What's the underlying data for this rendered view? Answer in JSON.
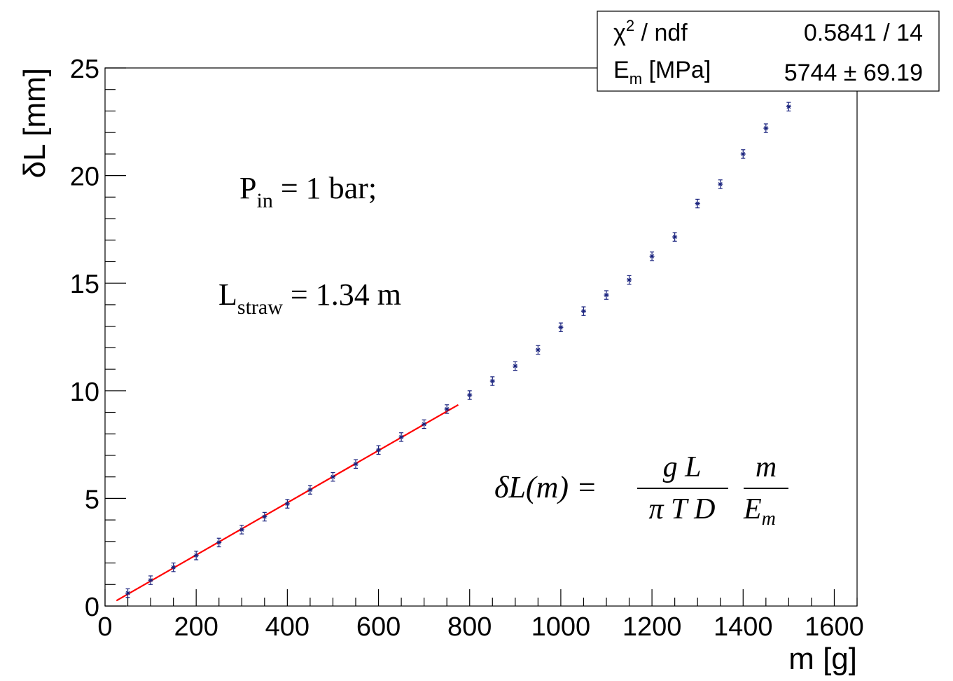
{
  "chart_data": {
    "type": "scatter",
    "xlabel": "m [g]",
    "ylabel": "δL [mm]",
    "xlim": [
      0,
      1650
    ],
    "ylim": [
      0,
      25
    ],
    "x_ticks": [
      "0",
      "200",
      "400",
      "600",
      "800",
      "1000",
      "1200",
      "1400",
      "1600"
    ],
    "y_ticks": [
      "0",
      "5",
      "10",
      "15",
      "20",
      "25"
    ],
    "grid": false,
    "series": [
      {
        "marker_color": "#1a237e",
        "points": [
          {
            "x": 50,
            "y": 0.6,
            "err": 0.2
          },
          {
            "x": 100,
            "y": 1.2,
            "err": 0.2
          },
          {
            "x": 150,
            "y": 1.8,
            "err": 0.2
          },
          {
            "x": 200,
            "y": 2.35,
            "err": 0.2
          },
          {
            "x": 250,
            "y": 2.95,
            "err": 0.2
          },
          {
            "x": 300,
            "y": 3.55,
            "err": 0.2
          },
          {
            "x": 350,
            "y": 4.15,
            "err": 0.2
          },
          {
            "x": 400,
            "y": 4.75,
            "err": 0.2
          },
          {
            "x": 450,
            "y": 5.4,
            "err": 0.2
          },
          {
            "x": 500,
            "y": 6.0,
            "err": 0.2
          },
          {
            "x": 550,
            "y": 6.6,
            "err": 0.2
          },
          {
            "x": 600,
            "y": 7.25,
            "err": 0.2
          },
          {
            "x": 650,
            "y": 7.85,
            "err": 0.2
          },
          {
            "x": 700,
            "y": 8.45,
            "err": 0.2
          },
          {
            "x": 750,
            "y": 9.15,
            "err": 0.2
          },
          {
            "x": 800,
            "y": 9.8,
            "err": 0.2
          },
          {
            "x": 850,
            "y": 10.45,
            "err": 0.2
          },
          {
            "x": 900,
            "y": 11.15,
            "err": 0.2
          },
          {
            "x": 950,
            "y": 11.9,
            "err": 0.2
          },
          {
            "x": 1000,
            "y": 12.95,
            "err": 0.2
          },
          {
            "x": 1050,
            "y": 13.7,
            "err": 0.2
          },
          {
            "x": 1100,
            "y": 14.45,
            "err": 0.2
          },
          {
            "x": 1150,
            "y": 15.15,
            "err": 0.2
          },
          {
            "x": 1200,
            "y": 16.25,
            "err": 0.2
          },
          {
            "x": 1250,
            "y": 17.15,
            "err": 0.2
          },
          {
            "x": 1300,
            "y": 18.7,
            "err": 0.2
          },
          {
            "x": 1350,
            "y": 19.6,
            "err": 0.2
          },
          {
            "x": 1400,
            "y": 21.0,
            "err": 0.2
          },
          {
            "x": 1450,
            "y": 22.2,
            "err": 0.2
          },
          {
            "x": 1500,
            "y": 23.2,
            "err": 0.2
          }
        ]
      }
    ],
    "fit": {
      "color": "#ff0000",
      "x_range": [
        25,
        775
      ],
      "y_range": [
        0.25,
        9.35
      ]
    },
    "stats_box": {
      "row1_label": "χ",
      "row1_sup": "2",
      "row1_label_rest": " / ndf",
      "row1_value": "0.5841 / 14",
      "row2_label": "E",
      "row2_sub": "m",
      "row2_label_rest": " [MPa]",
      "row2_value": "5744 ± 69.19"
    },
    "annotations": {
      "pressure_main": "P",
      "pressure_sub": "in",
      "pressure_rest": " = 1 bar;",
      "length_main": "L",
      "length_sub": "straw",
      "length_rest": " = 1.34 m",
      "formula_lhs": "δL(m) =",
      "formula_num1": "g L",
      "formula_den1": "π T D",
      "formula_num2": "m",
      "formula_den2_main": "E",
      "formula_den2_sub": "m"
    }
  }
}
